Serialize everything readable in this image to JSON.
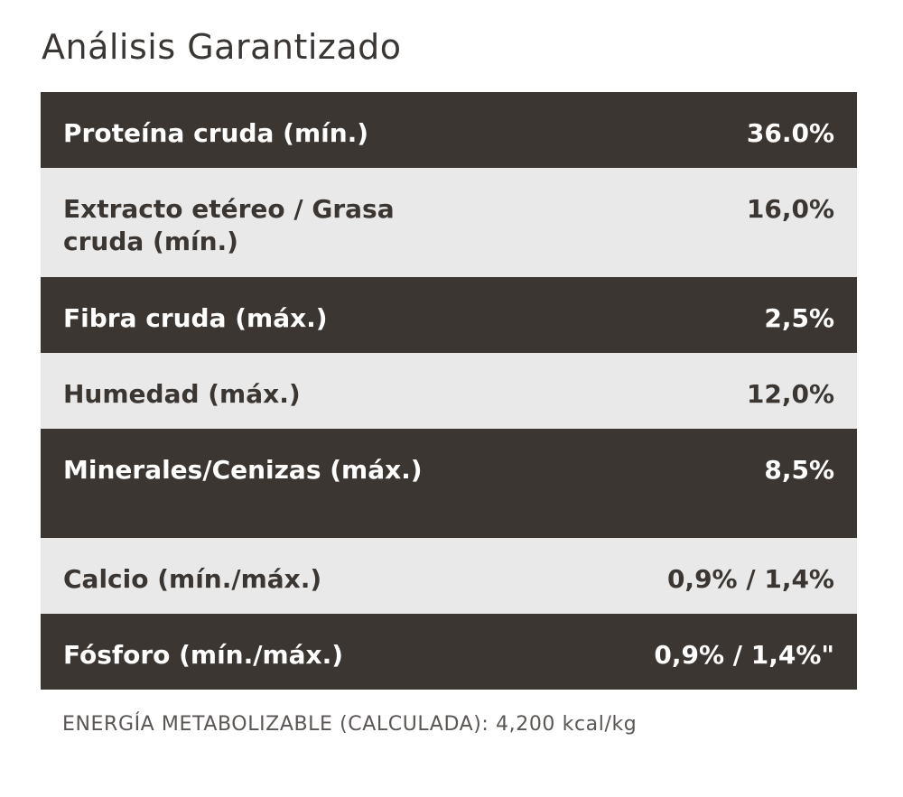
{
  "title": "Análisis Garantizado",
  "rows": [
    {
      "label": "Proteína cruda (mín.)",
      "value": "36.0%"
    },
    {
      "label": "Extracto etéreo / Grasa cruda (mín.)",
      "value": "16,0%"
    },
    {
      "label": "Fibra cruda (máx.)",
      "value": "2,5%"
    },
    {
      "label": "Humedad (máx.)",
      "value": "12,0%"
    },
    {
      "label": "Minerales/Cenizas (máx.)",
      "value": "8,5%"
    },
    {
      "label": "Calcio (mín./máx.)",
      "value": "0,9% / 1,4%"
    },
    {
      "label": "Fósforo (mín./máx.)",
      "value": "0,9% / 1,4%\""
    }
  ],
  "footnote": "ENERGÍA METABOLIZABLE (CALCULADA): 4,200 kcal/kg",
  "colors": {
    "dark_row": "#3b3632",
    "light_row": "#e9e9e9",
    "title_text": "#3a3634"
  }
}
